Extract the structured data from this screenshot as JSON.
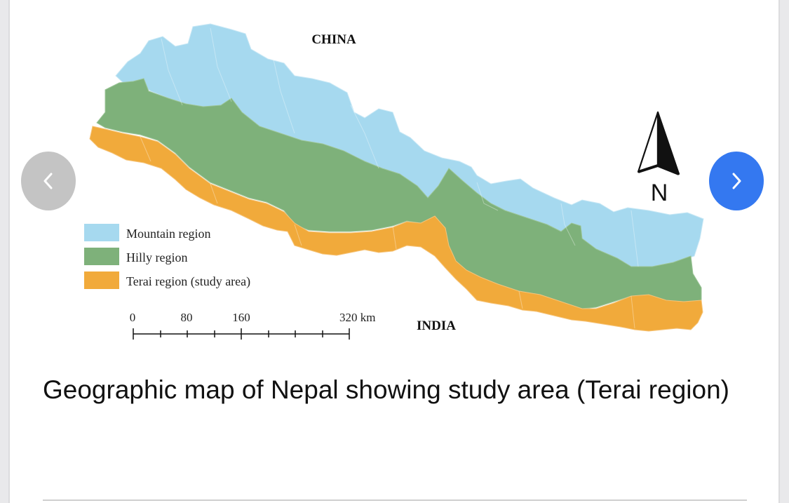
{
  "map": {
    "label_north": "CHINA",
    "label_south": "INDIA",
    "compass_label": "N",
    "colors": {
      "mountain": "#a6d9ef",
      "hilly": "#7eb17a",
      "terai": "#f1aa3b"
    },
    "legend": [
      {
        "label": "Mountain region",
        "color": "#a6d9ef"
      },
      {
        "label": "Hilly region",
        "color": "#7eb17a"
      },
      {
        "label": "Terai region (study area)",
        "color": "#f1aa3b"
      }
    ],
    "scale_bar": {
      "ticks": [
        "0",
        "80",
        "160",
        "320 km"
      ]
    }
  },
  "carousel": {
    "prev_icon": "chevron-left-icon",
    "next_icon": "chevron-right-icon"
  },
  "caption": "Geographic map of Nepal showing study area (Terai region)"
}
